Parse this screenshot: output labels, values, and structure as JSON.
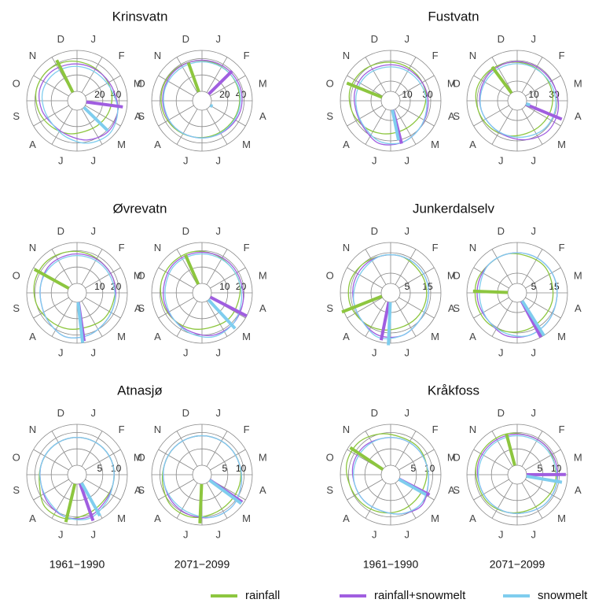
{
  "months": [
    "J",
    "F",
    "M",
    "A",
    "M",
    "J",
    "J",
    "A",
    "S",
    "O",
    "N",
    "D"
  ],
  "period_labels": [
    "1961−1990",
    "2071−2099",
    "1961−1990",
    "2071−2099"
  ],
  "legend": [
    {
      "name": "rainfall",
      "color": "#8dc63f"
    },
    {
      "name": "rainfall+snowmelt",
      "color": "#a05ee0"
    },
    {
      "name": "snowmelt",
      "color": "#7fcdee"
    }
  ],
  "chart_data": [
    {
      "type": "polar",
      "title": "Krinsvatn",
      "rlim": [
        0,
        50
      ],
      "rticks": [
        20,
        40
      ],
      "series": [
        {
          "timing": 338,
          "magnitude": 44,
          "values": [
            35,
            33,
            32,
            30,
            28,
            27,
            30,
            33,
            37,
            40,
            40,
            38
          ]
        },
        {
          "timing": 99,
          "magnitude": 45,
          "values": [
            33,
            33,
            35,
            40,
            42,
            38,
            32,
            30,
            33,
            36,
            36,
            34
          ]
        },
        {
          "timing": 136,
          "magnitude": 41,
          "values": [
            30,
            30,
            33,
            40,
            45,
            42,
            35,
            30,
            30,
            32,
            32,
            31
          ]
        }
      ]
    },
    {
      "type": "polar",
      "rlim": [
        0,
        50
      ],
      "rticks": [
        20,
        40
      ],
      "series": [
        {
          "timing": 345,
          "magnitude": 38,
          "values": [
            37,
            36,
            35,
            34,
            33,
            33,
            34,
            36,
            38,
            39,
            39,
            38
          ]
        },
        {
          "timing": 46,
          "magnitude": 40,
          "values": [
            38,
            38,
            38,
            37,
            35,
            34,
            34,
            35,
            36,
            37,
            38,
            38
          ]
        },
        {
          "timing": 120,
          "magnitude": 3,
          "values": [
            36,
            36,
            36,
            35,
            34,
            34,
            34,
            35,
            35,
            36,
            36,
            36
          ]
        }
      ]
    },
    {
      "type": "polar",
      "title": "Fustvatn",
      "rlim": [
        0,
        40
      ],
      "rticks": [
        10,
        30
      ],
      "series": [
        {
          "timing": 296,
          "magnitude": 37,
          "values": [
            28,
            27,
            26,
            24,
            22,
            22,
            24,
            27,
            30,
            32,
            31,
            29
          ]
        },
        {
          "timing": 168,
          "magnitude": 34,
          "values": [
            26,
            26,
            27,
            28,
            30,
            33,
            34,
            28,
            26,
            27,
            27,
            26
          ]
        },
        {
          "timing": 171,
          "magnitude": 30,
          "values": [
            24,
            24,
            25,
            27,
            30,
            33,
            32,
            27,
            25,
            25,
            25,
            24
          ]
        }
      ]
    },
    {
      "type": "polar",
      "rlim": [
        0,
        40
      ],
      "rticks": [
        10,
        30
      ],
      "series": [
        {
          "timing": 328,
          "magnitude": 32,
          "values": [
            28,
            27,
            26,
            25,
            24,
            24,
            26,
            28,
            30,
            32,
            31,
            29
          ]
        },
        {
          "timing": 114,
          "magnitude": 38,
          "values": [
            29,
            29,
            30,
            32,
            33,
            30,
            27,
            26,
            27,
            28,
            29,
            29
          ]
        },
        {
          "timing": 110,
          "magnitude": 4,
          "values": [
            27,
            27,
            28,
            29,
            29,
            27,
            26,
            26,
            27,
            27,
            27,
            27
          ]
        }
      ]
    },
    {
      "type": "polar",
      "title": "Øvrevatn",
      "rlim": [
        0,
        25
      ],
      "rticks": [
        10,
        20
      ],
      "series": [
        {
          "timing": 303,
          "magnitude": 24,
          "values": [
            19,
            18,
            18,
            17,
            17,
            16,
            17,
            18,
            20,
            21,
            21,
            20
          ]
        },
        {
          "timing": 174,
          "magnitude": 24,
          "values": [
            18,
            18,
            18,
            18,
            19,
            21,
            22,
            19,
            17,
            17,
            18,
            18
          ]
        },
        {
          "timing": 176,
          "magnitude": 25,
          "values": [
            17,
            17,
            17,
            18,
            19,
            21,
            22,
            19,
            17,
            17,
            17,
            17
          ]
        }
      ]
    },
    {
      "type": "polar",
      "rlim": [
        0,
        25
      ],
      "rticks": [
        10,
        20
      ],
      "series": [
        {
          "timing": 341,
          "magnitude": 19.5,
          "values": [
            19,
            18,
            18,
            17,
            17,
            16,
            17,
            18,
            19,
            20,
            20,
            20
          ]
        },
        {
          "timing": 119,
          "magnitude": 25,
          "values": [
            19,
            19,
            19,
            20,
            21,
            21,
            19,
            18,
            18,
            18,
            19,
            19
          ]
        },
        {
          "timing": 139,
          "magnitude": 24,
          "values": [
            18,
            18,
            18,
            19,
            21,
            22,
            20,
            18,
            17,
            17,
            18,
            18
          ]
        }
      ]
    },
    {
      "type": "polar",
      "title": "Junkerdalselv",
      "rlim": [
        0,
        20
      ],
      "rticks": [
        5,
        15
      ],
      "series": [
        {
          "timing": 252,
          "magnitude": 21,
          "values": [
            14,
            13,
            13,
            13,
            13,
            13,
            14,
            15,
            16,
            16,
            15,
            14
          ]
        },
        {
          "timing": 194,
          "magnitude": 19,
          "values": [
            14,
            14,
            14,
            14,
            15,
            17,
            17,
            15,
            14,
            14,
            14,
            14
          ]
        },
        {
          "timing": 185,
          "magnitude": 21,
          "values": [
            14,
            14,
            14,
            14,
            15,
            17,
            18,
            15,
            14,
            13,
            13,
            14
          ]
        }
      ]
    },
    {
      "type": "polar",
      "rlim": [
        0,
        20
      ],
      "rticks": [
        5,
        15
      ],
      "series": [
        {
          "timing": 276,
          "magnitude": 17,
          "values": [
            14,
            14,
            13,
            13,
            13,
            14,
            15,
            16,
            16,
            16,
            15,
            15
          ]
        },
        {
          "timing": 154,
          "magnitude": 20,
          "values": [
            15,
            15,
            15,
            15,
            16,
            17,
            17,
            15,
            15,
            15,
            15,
            15
          ]
        },
        {
          "timing": 150,
          "magnitude": 20,
          "values": [
            15,
            15,
            15,
            15,
            16,
            17,
            16,
            15,
            14,
            14,
            15,
            15
          ]
        }
      ]
    },
    {
      "type": "polar",
      "title": "Atnasjø",
      "rlim": [
        0,
        12.5
      ],
      "rticks": [
        5,
        10
      ],
      "series": [
        {
          "timing": 196,
          "magnitude": 12,
          "values": [
            8.5,
            8.5,
            8.5,
            8.5,
            8.5,
            9.5,
            11,
            11,
            9,
            8.5,
            8.5,
            8.5
          ]
        },
        {
          "timing": 163,
          "magnitude": 12,
          "values": [
            8.5,
            8.5,
            8.5,
            8.5,
            9,
            10.5,
            10.5,
            9.5,
            8.5,
            8.5,
            8.5,
            8.5
          ]
        },
        {
          "timing": 153,
          "magnitude": 11.5,
          "values": [
            8.5,
            8.5,
            8.5,
            8.5,
            9.5,
            11,
            10.5,
            9,
            8.5,
            8.5,
            8.5,
            8.5
          ]
        }
      ]
    },
    {
      "type": "polar",
      "rlim": [
        0,
        12.5
      ],
      "rticks": [
        5,
        10
      ],
      "series": [
        {
          "timing": 185,
          "magnitude": 12,
          "values": [
            9,
            9,
            9,
            9,
            9,
            9.5,
            10.5,
            10.5,
            9.5,
            9,
            9,
            9
          ]
        },
        {
          "timing": 126,
          "magnitude": 12,
          "values": [
            9,
            9,
            9,
            9.5,
            10.5,
            10.5,
            10,
            9.5,
            9,
            9,
            9,
            9
          ]
        },
        {
          "timing": 128,
          "magnitude": 12,
          "values": [
            9,
            9,
            9,
            9.5,
            10.5,
            10.5,
            9.5,
            9,
            9,
            9,
            9,
            9
          ]
        }
      ]
    },
    {
      "type": "polar",
      "title": "Kråkfoss",
      "rlim": [
        0,
        12.5
      ],
      "rticks": [
        5,
        10
      ],
      "series": [
        {
          "timing": 308,
          "magnitude": 12,
          "values": [
            9,
            9,
            8.5,
            8,
            8,
            8.5,
            9,
            9.5,
            10,
            11,
            11,
            10
          ]
        },
        {
          "timing": 119,
          "magnitude": 10.5,
          "values": [
            8.5,
            8.5,
            8.5,
            9,
            10.5,
            9.5,
            8.5,
            8.5,
            8.5,
            9,
            9,
            8.5
          ]
        },
        {
          "timing": 121,
          "magnitude": 9.5,
          "values": [
            8.5,
            8.5,
            8.5,
            9,
            10,
            9.5,
            8.5,
            8.5,
            8.5,
            8.5,
            8.5,
            8.5
          ]
        }
      ]
    },
    {
      "type": "polar",
      "rlim": [
        0,
        12.5
      ],
      "rticks": [
        5,
        10
      ],
      "series": [
        {
          "timing": 350,
          "magnitude": 10,
          "values": [
            9.5,
            9.5,
            9,
            9,
            8.5,
            8.5,
            9,
            9.5,
            9.5,
            10,
            10,
            10
          ]
        },
        {
          "timing": 91,
          "magnitude": 12,
          "values": [
            9.5,
            9.5,
            9.5,
            9.5,
            9.5,
            9,
            9,
            9,
            9,
            9.5,
            9.5,
            9.5
          ]
        },
        {
          "timing": 101,
          "magnitude": 11,
          "values": [
            9,
            9,
            9,
            9.5,
            9.5,
            9,
            9,
            9,
            9,
            9,
            9,
            9
          ]
        }
      ]
    }
  ]
}
